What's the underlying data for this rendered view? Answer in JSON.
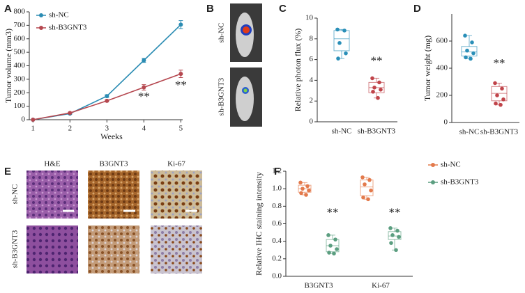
{
  "chart_data": [
    {
      "type": "line",
      "panel": "A",
      "xlabel": "Weeks",
      "ylabel": "Tumor volume (mm3)",
      "x": [
        1,
        2,
        3,
        4,
        5
      ],
      "xlim": [
        0.9,
        5.05
      ],
      "xticks": [
        1,
        2,
        3,
        4,
        5
      ],
      "ylim": [
        0,
        800
      ],
      "yticks": [
        0,
        100,
        200,
        300,
        400,
        500,
        600,
        700,
        800
      ],
      "series": [
        {
          "name": "sh-NC",
          "color": "#2b8cb3",
          "values": [
            0,
            45,
            175,
            440,
            705
          ],
          "errors": [
            0,
            5,
            10,
            15,
            30
          ]
        },
        {
          "name": "sh-B3GNT3",
          "color": "#b5474f",
          "values": [
            0,
            50,
            140,
            240,
            340
          ],
          "errors": [
            0,
            5,
            8,
            20,
            28
          ]
        }
      ],
      "annotations": [
        {
          "text": "**",
          "x": 4,
          "y": 165
        },
        {
          "text": "**",
          "x": 5,
          "y": 250
        }
      ]
    },
    {
      "type": "box",
      "panel": "C",
      "ylabel": "Relative photon flux (%)",
      "categories": [
        "sh-NC",
        "sh-B3GNT3"
      ],
      "colors": [
        "#2a8fb8",
        "#c0444a"
      ],
      "ylim": [
        0,
        10
      ],
      "yticks": [
        0,
        2,
        4,
        6,
        8,
        10
      ],
      "min": [
        6.1,
        2.3
      ],
      "q1": [
        6.85,
        2.8
      ],
      "median": [
        8.0,
        3.3
      ],
      "q3": [
        8.8,
        3.8
      ],
      "max": [
        8.9,
        4.2
      ],
      "points": [
        [
          8.9,
          8.8,
          7.6,
          6.6,
          6.1
        ],
        [
          4.2,
          3.8,
          3.3,
          3.1,
          2.9,
          2.3
        ]
      ],
      "annotations": [
        {
          "text": "**",
          "category": 1,
          "y": 5.8
        }
      ]
    },
    {
      "type": "box",
      "panel": "D",
      "ylabel": "Tumor weight (mg)",
      "categories": [
        "sh-NC",
        "sh-B3GNT3"
      ],
      "colors": [
        "#2a8fb8",
        "#c0444a"
      ],
      "ylim": [
        0,
        800
      ],
      "yticks": [
        0,
        200,
        400,
        600
      ],
      "min": [
        470,
        130
      ],
      "q1": [
        490,
        160
      ],
      "median": [
        520,
        215
      ],
      "q3": [
        560,
        265
      ],
      "max": [
        640,
        290
      ],
      "points": [
        [
          640,
          590,
          530,
          510,
          480,
          470
        ],
        [
          290,
          250,
          200,
          170,
          140,
          130
        ]
      ],
      "annotations": [
        {
          "text": "**",
          "category": 1,
          "y": 430
        }
      ]
    },
    {
      "type": "box",
      "panel": "F",
      "ylabel": "Relative IHC staining intensity",
      "categories": [
        "B3GNT3",
        "Ki-67"
      ],
      "ylim": [
        0,
        1.2
      ],
      "yticks": [
        {
          "value": 0,
          "label": "0.0"
        },
        0.2,
        0.4,
        0.6,
        0.8,
        {
          "value": 1,
          "label": "1.0"
        },
        1.2
      ],
      "series": [
        {
          "name": "sh-NC",
          "color": "#e37a4c",
          "min": [
            0.93,
            0.88
          ],
          "q1": [
            0.96,
            0.92
          ],
          "median": [
            1.0,
            1.02
          ],
          "q3": [
            1.04,
            1.1
          ],
          "max": [
            1.07,
            1.13
          ],
          "points": [
            [
              1.07,
              1.03,
              1.0,
              0.98,
              0.95,
              0.93
            ],
            [
              1.13,
              1.1,
              1.05,
              0.98,
              0.9,
              0.88
            ]
          ]
        },
        {
          "name": "sh-B3GNT3",
          "color": "#5b9e80",
          "min": [
            0.26,
            0.3
          ],
          "q1": [
            0.28,
            0.42
          ],
          "median": [
            0.35,
            0.46
          ],
          "q3": [
            0.42,
            0.51
          ],
          "max": [
            0.47,
            0.55
          ],
          "points": [
            [
              0.47,
              0.42,
              0.35,
              0.31,
              0.27,
              0.26
            ],
            [
              0.55,
              0.52,
              0.47,
              0.45,
              0.38,
              0.3
            ]
          ]
        }
      ],
      "annotations": [
        {
          "text": "**",
          "category": 0,
          "series": 1,
          "y": 0.72
        },
        {
          "text": "**",
          "category": 1,
          "series": 1,
          "y": 0.72
        }
      ]
    }
  ],
  "panel_B": {
    "panel": "B",
    "rows": [
      "sh-NC",
      "sh-B3GNT3"
    ]
  },
  "panel_E": {
    "panel": "E",
    "columns": [
      "H&E",
      "B3GNT3",
      "Ki-67"
    ],
    "rows": [
      "sh-NC",
      "sh-B3GNT3"
    ]
  }
}
